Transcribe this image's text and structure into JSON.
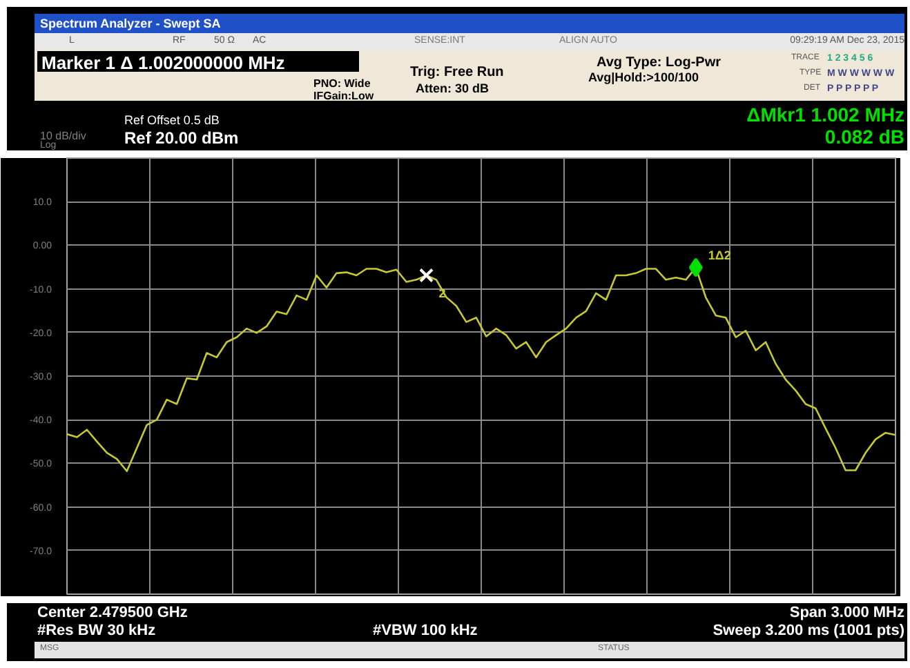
{
  "chart_data": {
    "type": "line",
    "title": "Marker 1 Δ 1.002000000 MHz",
    "annotations": [
      "Spectrum Analyzer - Swept SA",
      "L",
      "RF",
      "50 Ω",
      "AC",
      "SENSE:INT",
      "ALIGN AUTO",
      "09:29:19 AM Dec 23, 2015",
      "PNO: Wide",
      "IFGain:Low",
      "Trig: Free Run",
      "Atten: 30 dB",
      "Avg Type: Log-Pwr",
      "Avg|Hold:>100/100",
      "TRACE",
      "1 2 3 4 5 6",
      "TYPE",
      "M W W W W W",
      "DET",
      "P P P P P P",
      "Ref Offset 0.5 dB",
      "Ref 20.00 dBm",
      "10 dB/div",
      "Log",
      "ΔMkr1 1.002 MHz",
      "0.082 dB",
      "Center 2.479500 GHz",
      "#Res BW 30 kHz",
      "#VBW 100 kHz",
      "Span 3.000 MHz",
      "Sweep  3.200 ms (1001 pts)",
      "MSG",
      "STATUS"
    ],
    "categories": [
      null,
      null,
      null,
      null,
      null,
      null,
      null,
      null,
      null,
      null,
      null,
      null,
      null,
      null,
      null,
      null,
      null,
      null,
      null,
      null,
      null,
      null,
      null,
      null,
      null,
      null,
      null,
      null,
      null,
      null,
      null,
      null,
      null,
      null,
      null,
      null,
      null,
      null,
      null,
      null,
      null,
      null,
      null,
      null,
      null,
      null,
      null,
      null,
      null,
      null,
      null,
      null,
      null,
      null,
      null,
      null,
      null,
      null,
      null,
      null,
      null,
      null,
      null,
      null,
      null,
      null,
      null,
      null,
      null,
      null,
      null,
      null,
      null,
      null,
      null,
      null,
      null,
      null,
      null,
      null,
      null,
      null,
      null,
      null
    ],
    "ylim": [
      -80,
      20
    ],
    "yticks": [
      {
        "value": 10,
        "label": "10.0"
      },
      {
        "value": 0,
        "label": "0.00"
      },
      {
        "value": -10,
        "label": "-10.0"
      },
      {
        "value": -20,
        "label": "-20.0"
      },
      {
        "value": -30,
        "label": "-30.0"
      },
      {
        "value": -40,
        "label": "-40.0"
      },
      {
        "value": -50,
        "label": "-50.0"
      },
      {
        "value": -60,
        "label": "-60.0"
      },
      {
        "value": -70,
        "label": "-70.0"
      }
    ],
    "tick_labels": "y",
    "grid": true,
    "series": [
      {
        "color": "#c8c832",
        "values": [
          -43.3,
          -44,
          -42.3,
          -45,
          -47.6,
          -49,
          -51.8,
          -46.5,
          -41.2,
          -40,
          -35.4,
          -36.4,
          -30.5,
          -30.8,
          -24.7,
          -25.7,
          -22.2,
          -21.1,
          -19.1,
          -20.1,
          -18.6,
          -15.2,
          -15.8,
          -11.5,
          -12.5,
          -6.9,
          -9.7,
          -6.4,
          -6.2,
          -6.9,
          -5.4,
          -5.4,
          -6.2,
          -5.6,
          -8.4,
          -7.9,
          -6.9,
          -7.9,
          -11.9,
          -13.9,
          -17.6,
          -16.6,
          -20.9,
          -19.1,
          -20.6,
          -23.7,
          -22.2,
          -25.7,
          -22.2,
          -20.6,
          -19.1,
          -16.6,
          -15.1,
          -11,
          -12.5,
          -6.9,
          -6.9,
          -6.4,
          -5.4,
          -5.4,
          -7.9,
          -7.4,
          -7.9,
          -5.1,
          -12,
          -16.1,
          -16.6,
          -21.1,
          -19.6,
          -24.1,
          -22.2,
          -27.2,
          -30.8,
          -33.3,
          -36.4,
          -37.4,
          -42,
          -46.5,
          -51.6,
          -51.6,
          -47.6,
          -44.5,
          -43,
          -43.5
        ]
      },
      {
        "type": "scatter",
        "marker": "cross",
        "name": "2",
        "color": "#ffffff",
        "values": [
          null,
          null,
          null,
          null,
          null,
          null,
          null,
          null,
          null,
          null,
          null,
          null,
          null,
          null,
          null,
          null,
          null,
          null,
          null,
          null,
          null,
          null,
          null,
          null,
          null,
          null,
          null,
          null,
          null,
          null,
          null,
          null,
          null,
          null,
          null,
          null,
          -6.9,
          null,
          null,
          null,
          null,
          null,
          null,
          null,
          null,
          null,
          null,
          null,
          null,
          null,
          null,
          null,
          null,
          null,
          null,
          null,
          null,
          null,
          null,
          null,
          null,
          null,
          null,
          null,
          null,
          null,
          null,
          null,
          null,
          null,
          null,
          null,
          null,
          null,
          null,
          null,
          null,
          null,
          null,
          null,
          null,
          null,
          null,
          null
        ]
      },
      {
        "type": "scatter",
        "marker": "diamond",
        "name": "1Δ2",
        "color": "#00e000",
        "values": [
          null,
          null,
          null,
          null,
          null,
          null,
          null,
          null,
          null,
          null,
          null,
          null,
          null,
          null,
          null,
          null,
          null,
          null,
          null,
          null,
          null,
          null,
          null,
          null,
          null,
          null,
          null,
          null,
          null,
          null,
          null,
          null,
          null,
          null,
          null,
          null,
          null,
          null,
          null,
          null,
          null,
          null,
          null,
          null,
          null,
          null,
          null,
          null,
          null,
          null,
          null,
          null,
          null,
          null,
          null,
          null,
          null,
          null,
          null,
          null,
          null,
          null,
          null,
          -5.1,
          null,
          null,
          null,
          null,
          null,
          null,
          null,
          null,
          null,
          null,
          null,
          null,
          null,
          null,
          null,
          null,
          null,
          null,
          null,
          null
        ]
      }
    ]
  }
}
